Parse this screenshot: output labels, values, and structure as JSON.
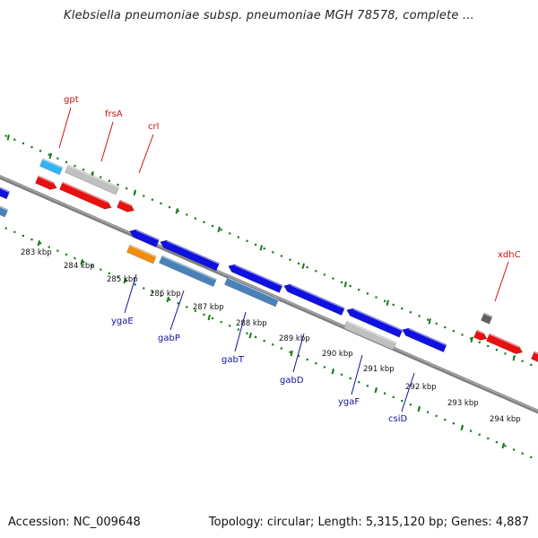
{
  "title": "Klebsiella pneumoniae subsp. pneumoniae MGH 78578, complete ...",
  "footer": {
    "accession": "Accession: NC_009648",
    "summary": "Topology: circular; Length: 5,315,120 bp; Genes: 4,887"
  },
  "colors": {
    "background": "#ffffff",
    "backbone": "#7f7f7f",
    "tick": "#1a7a1a",
    "forward_gene": "#e81010",
    "reverse_gene": "#1010e0",
    "pseudo_gene": "#c0c0c0",
    "light_blue": "#2fb5f0",
    "steel_blue": "#4a82b8",
    "orange": "#f08c10",
    "dark_gray": "#606060",
    "label_top": "#cc1111",
    "label_bottom": "#111199"
  },
  "scale_labels": [
    "283 kbp",
    "284 kbp",
    "285 kbp",
    "286 kbp",
    "287 kbp",
    "288 kbp",
    "289 kbp",
    "290 kbp",
    "291 kbp",
    "292 kbp",
    "293 kbp",
    "294 kbp"
  ],
  "top_gene_labels": [
    {
      "name": "gpt"
    },
    {
      "name": "frsA"
    },
    {
      "name": "crl"
    },
    {
      "name": "xdhC"
    }
  ],
  "bottom_gene_labels": [
    {
      "name": "ygaE"
    },
    {
      "name": "gabP"
    },
    {
      "name": "gabT"
    },
    {
      "name": "gabD"
    },
    {
      "name": "ygaF"
    },
    {
      "name": "csiD"
    }
  ]
}
